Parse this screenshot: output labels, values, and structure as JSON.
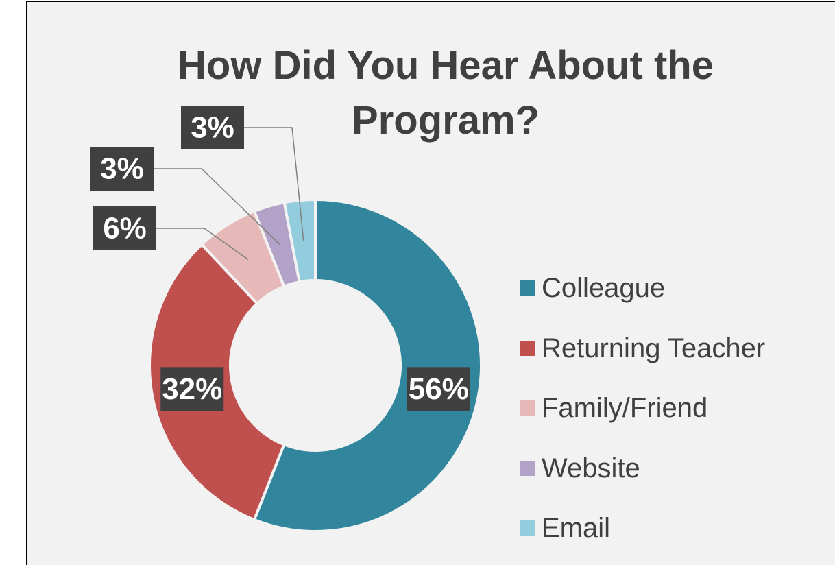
{
  "chart_data": {
    "type": "donut",
    "title": "How Did You Hear About the Program?",
    "categories": [
      "Colleague",
      "Returning Teacher",
      "Family/Friend",
      "Website",
      "Email"
    ],
    "values": [
      56,
      32,
      6,
      3,
      3
    ],
    "value_labels": [
      "56%",
      "32%",
      "6%",
      "3%",
      "3%"
    ],
    "colors": [
      "#31859c",
      "#c0504d",
      "#e6b9b8",
      "#b3a2c7",
      "#93cddd"
    ],
    "legend": "right"
  }
}
